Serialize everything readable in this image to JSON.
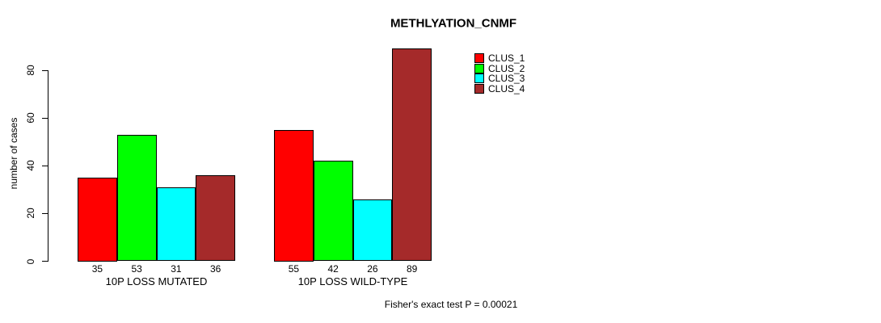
{
  "chart_data": {
    "type": "bar",
    "title": "METHLYATION_CNMF",
    "xlabel": "",
    "ylabel": "number of cases",
    "categories": [
      "10P LOSS MUTATED",
      "10P LOSS WILD-TYPE"
    ],
    "series": [
      {
        "name": "CLUS_1",
        "color": "#FF0000",
        "values": [
          35,
          55
        ]
      },
      {
        "name": "CLUS_2",
        "color": "#00FF00",
        "values": [
          53,
          42
        ]
      },
      {
        "name": "CLUS_3",
        "color": "#00FFFF",
        "values": [
          31,
          26
        ]
      },
      {
        "name": "CLUS_4",
        "color": "#A52A2A",
        "values": [
          36,
          89
        ]
      }
    ],
    "ylim": [
      0,
      80
    ],
    "yticks": [
      0,
      20,
      40,
      60,
      80
    ],
    "bar_value_labels": true,
    "grid": false,
    "legend_position": "top-right",
    "legend_entries": [
      "CLUS_1",
      "CLUS_2",
      "CLUS_3",
      "CLUS_4"
    ],
    "footnote": "Fisher's exact test P = 0.00021",
    "text_color": "#000000",
    "background_color": "#FFFFFF"
  }
}
